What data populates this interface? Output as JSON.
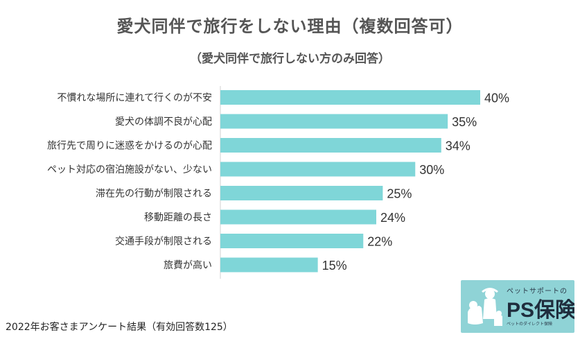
{
  "header": {
    "title": "愛犬同伴で旅行をしない理由（複数回答可）",
    "subtitle": "（愛犬同伴で旅行しない方のみ回答）"
  },
  "chart_data": {
    "type": "bar",
    "orientation": "horizontal",
    "title": "愛犬同伴で旅行をしない理由（複数回答可）",
    "subtitle": "（愛犬同伴で旅行しない方のみ回答）",
    "categories": [
      "不慣れな場所に連れて行くのが不安",
      "愛犬の体調不良が心配",
      "旅行先で周りに迷惑をかけるのが心配",
      "ペット対応の宿泊施設がない、少ない",
      "滞在先の行動が制限される",
      "移動距離の長さ",
      "交通手段が制限される",
      "旅費が高い"
    ],
    "values": [
      40,
      35,
      34,
      30,
      25,
      24,
      22,
      15
    ],
    "value_labels": [
      "40%",
      "35%",
      "34%",
      "30%",
      "25%",
      "24%",
      "22%",
      "15%"
    ],
    "unit": "%",
    "xlim": [
      0,
      40
    ],
    "bar_color": "#7fd6d8",
    "grid": false
  },
  "footer": {
    "note": "2022年お客さまアンケート結果（有効回答数125）"
  },
  "logo": {
    "subtitle": "ペットサポートの",
    "name": "PS保険",
    "tagline": "ペットのダイレクト保険",
    "background": "#8fd3d6"
  }
}
